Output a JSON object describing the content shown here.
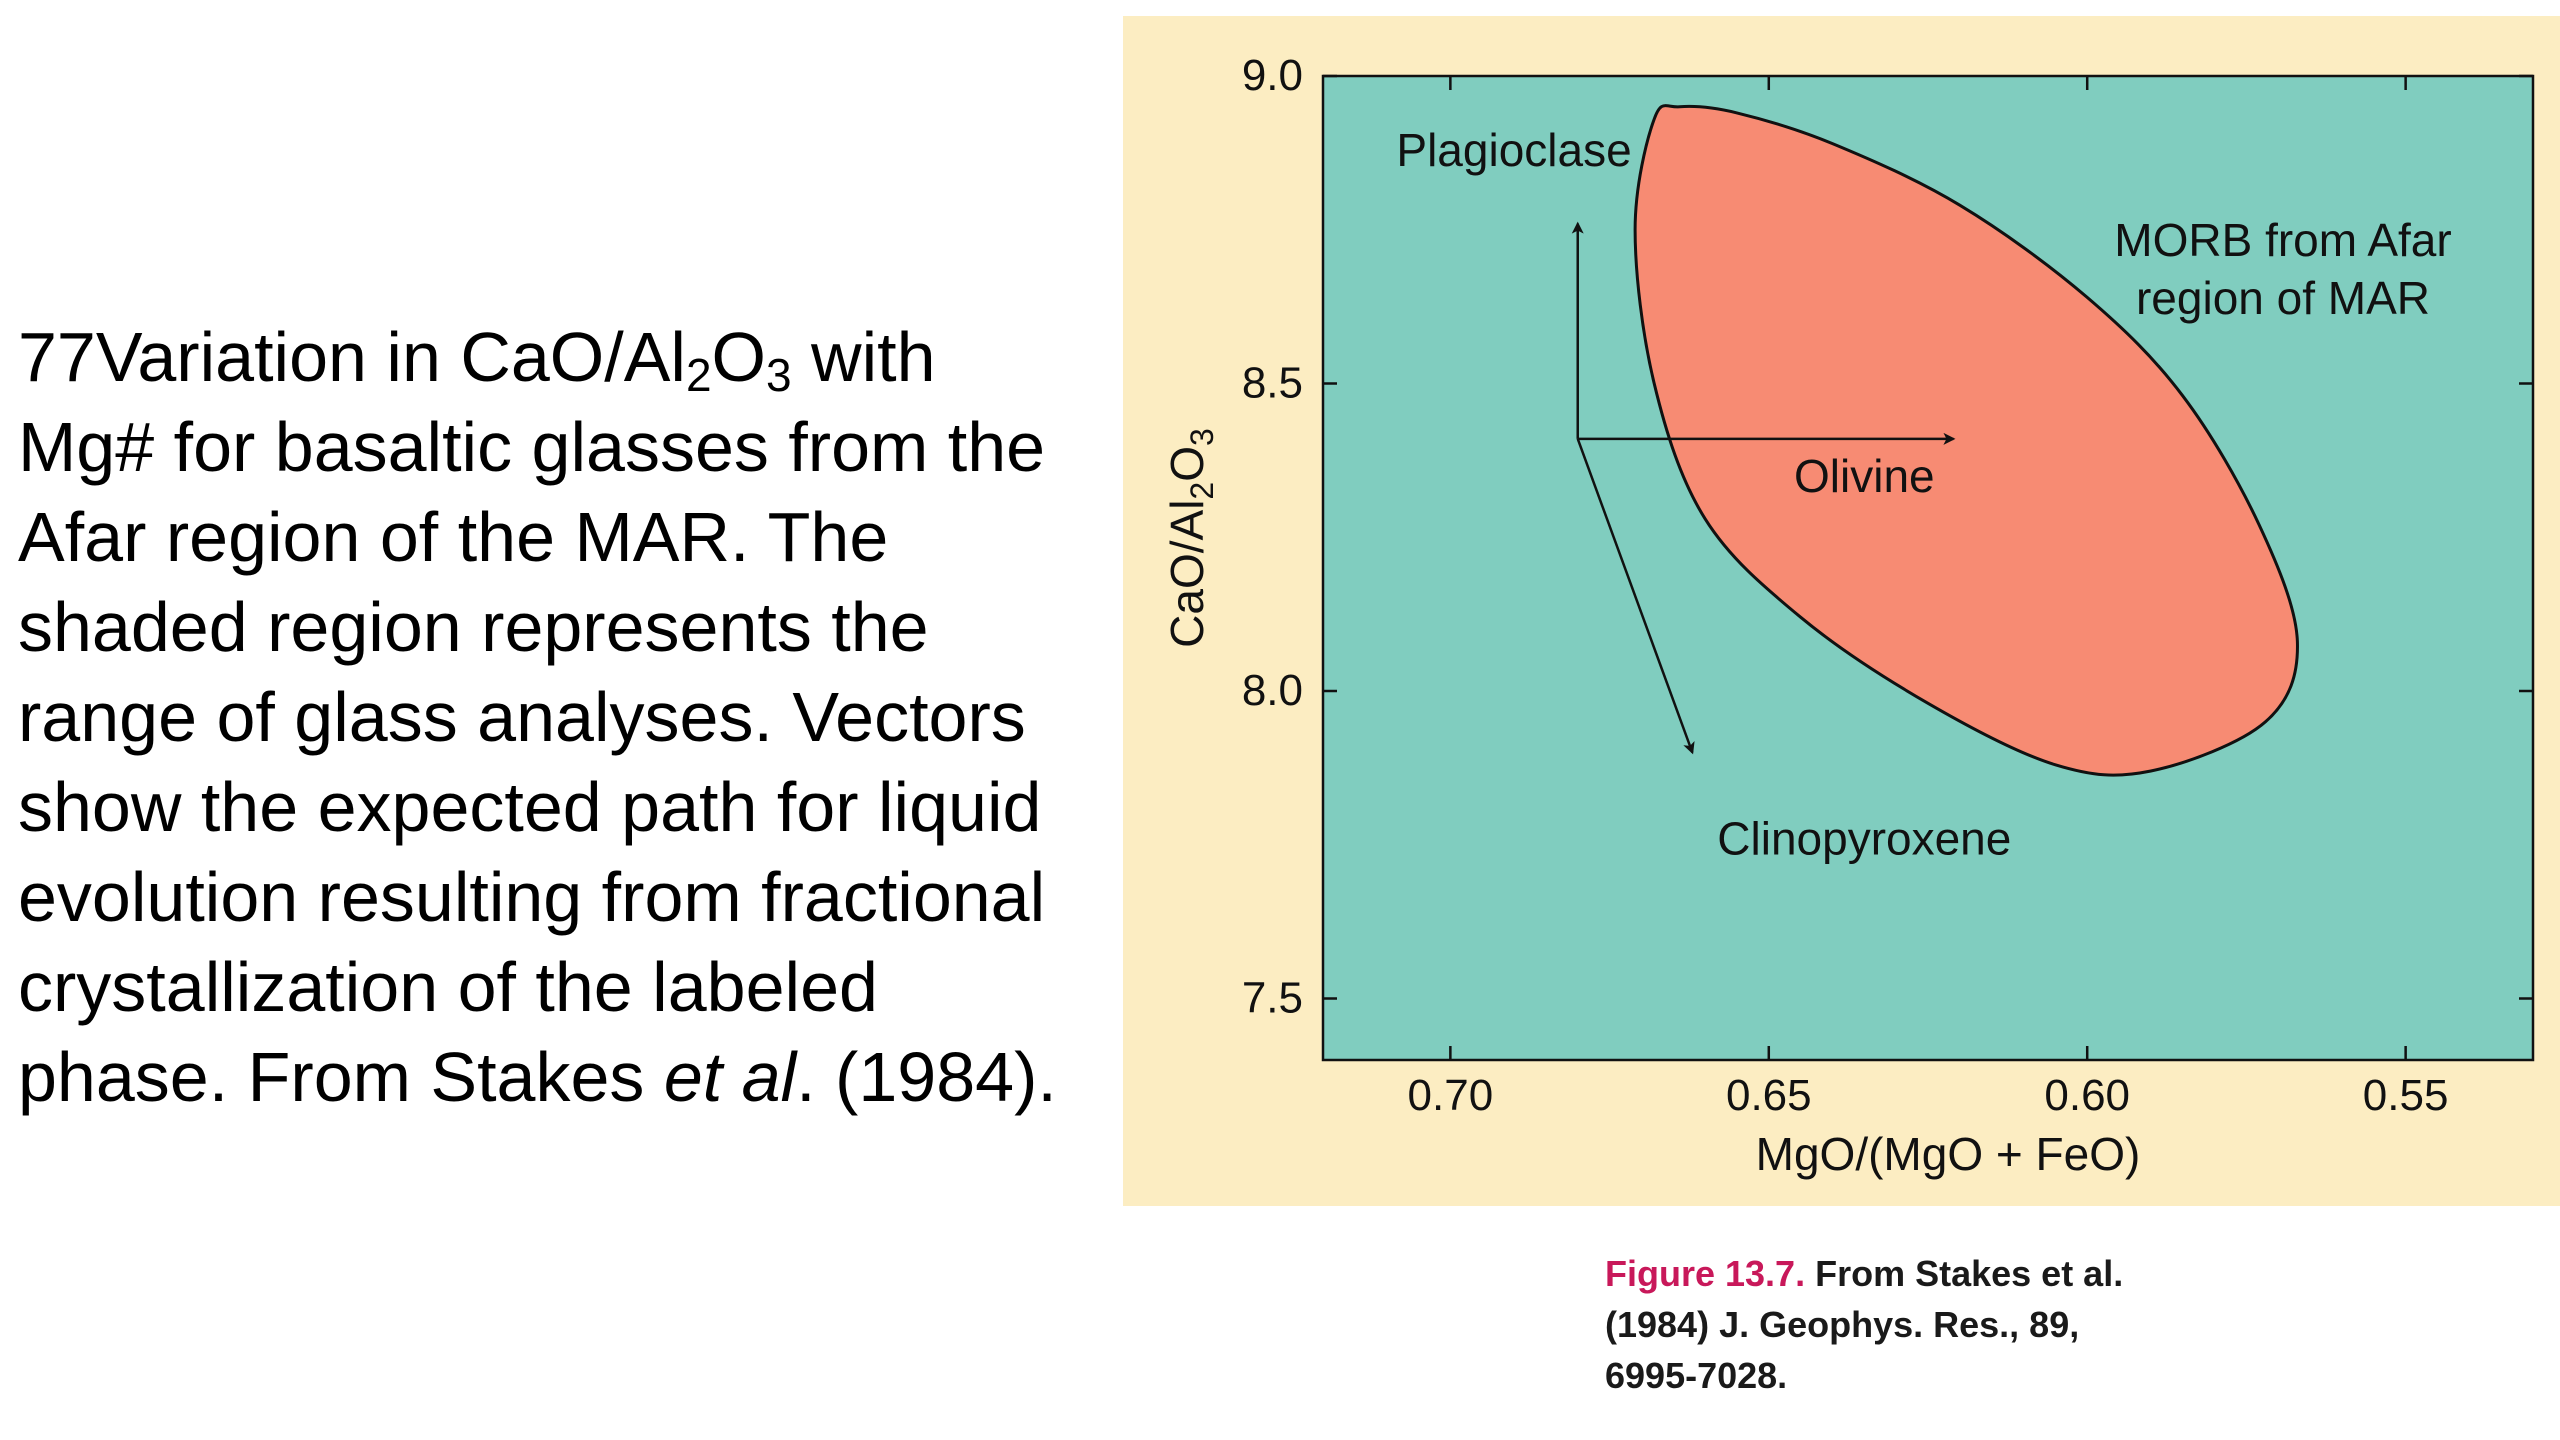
{
  "caption": {
    "line1_prefix": "77Variation in CaO/Al",
    "line1_sub1": "2",
    "line1_mid": "O",
    "line1_sub2": "3",
    "rest_1": " with Mg# for basaltic glasses from the Afar region of the MAR. The shaded region represents the range of glass analyses. Vectors show the expected path for liquid evolution resulting from fractional crystallization of the labeled phase. From Stakes ",
    "italic": "et al",
    "rest_2": ". (1984)."
  },
  "figure_credit": {
    "figure_number": "Figure 13.7.",
    "text": " From Stakes et al. (1984) J. Geophys. Res., 89, 6995-7028."
  },
  "colors": {
    "panel_background": "#fcedc2",
    "plot_background": "#80cdbf",
    "region_fill": "#f78b73",
    "figure_number": "#c8185a"
  },
  "chart_data": {
    "type": "scatter",
    "title": "",
    "xlabel": "MgO/(MgO + FeO)",
    "ylabel_parts": {
      "a": "CaO/Al",
      "sub1": "2",
      "b": "O",
      "sub2": "3"
    },
    "xlim": [
      0.72,
      0.53
    ],
    "ylim": [
      7.4,
      9.0
    ],
    "x_reversed": true,
    "xticks": [
      0.7,
      0.65,
      0.6,
      0.55
    ],
    "xtick_labels": [
      "0.70",
      "0.65",
      "0.60",
      "0.55"
    ],
    "yticks": [
      7.5,
      8.0,
      8.5,
      9.0
    ],
    "ytick_labels": [
      "7.5",
      "8.0",
      "8.5",
      "9.0"
    ],
    "grid": false,
    "region": {
      "name": "MORB from Afar region of MAR",
      "label_lines": [
        "MORB from Afar",
        "region of MAR"
      ],
      "boundary": [
        [
          0.668,
          8.93
        ],
        [
          0.664,
          8.95
        ],
        [
          0.655,
          8.94
        ],
        [
          0.64,
          8.89
        ],
        [
          0.62,
          8.79
        ],
        [
          0.6,
          8.64
        ],
        [
          0.585,
          8.48
        ],
        [
          0.573,
          8.27
        ],
        [
          0.567,
          8.08
        ],
        [
          0.572,
          7.95
        ],
        [
          0.59,
          7.87
        ],
        [
          0.605,
          7.88
        ],
        [
          0.625,
          7.98
        ],
        [
          0.645,
          8.12
        ],
        [
          0.66,
          8.28
        ],
        [
          0.668,
          8.5
        ],
        [
          0.671,
          8.75
        ]
      ]
    },
    "vectors": {
      "origin": [
        0.68,
        8.41
      ],
      "items": [
        {
          "name": "Plagioclase",
          "end": [
            0.68,
            8.76
          ],
          "label_at": [
            0.69,
            8.88
          ]
        },
        {
          "name": "Olivine",
          "end": [
            0.621,
            8.41
          ],
          "label_at": [
            0.635,
            8.35
          ]
        },
        {
          "name": "Clinopyroxene",
          "end": [
            0.662,
            7.9
          ],
          "label_at": [
            0.635,
            7.76
          ]
        }
      ]
    }
  }
}
